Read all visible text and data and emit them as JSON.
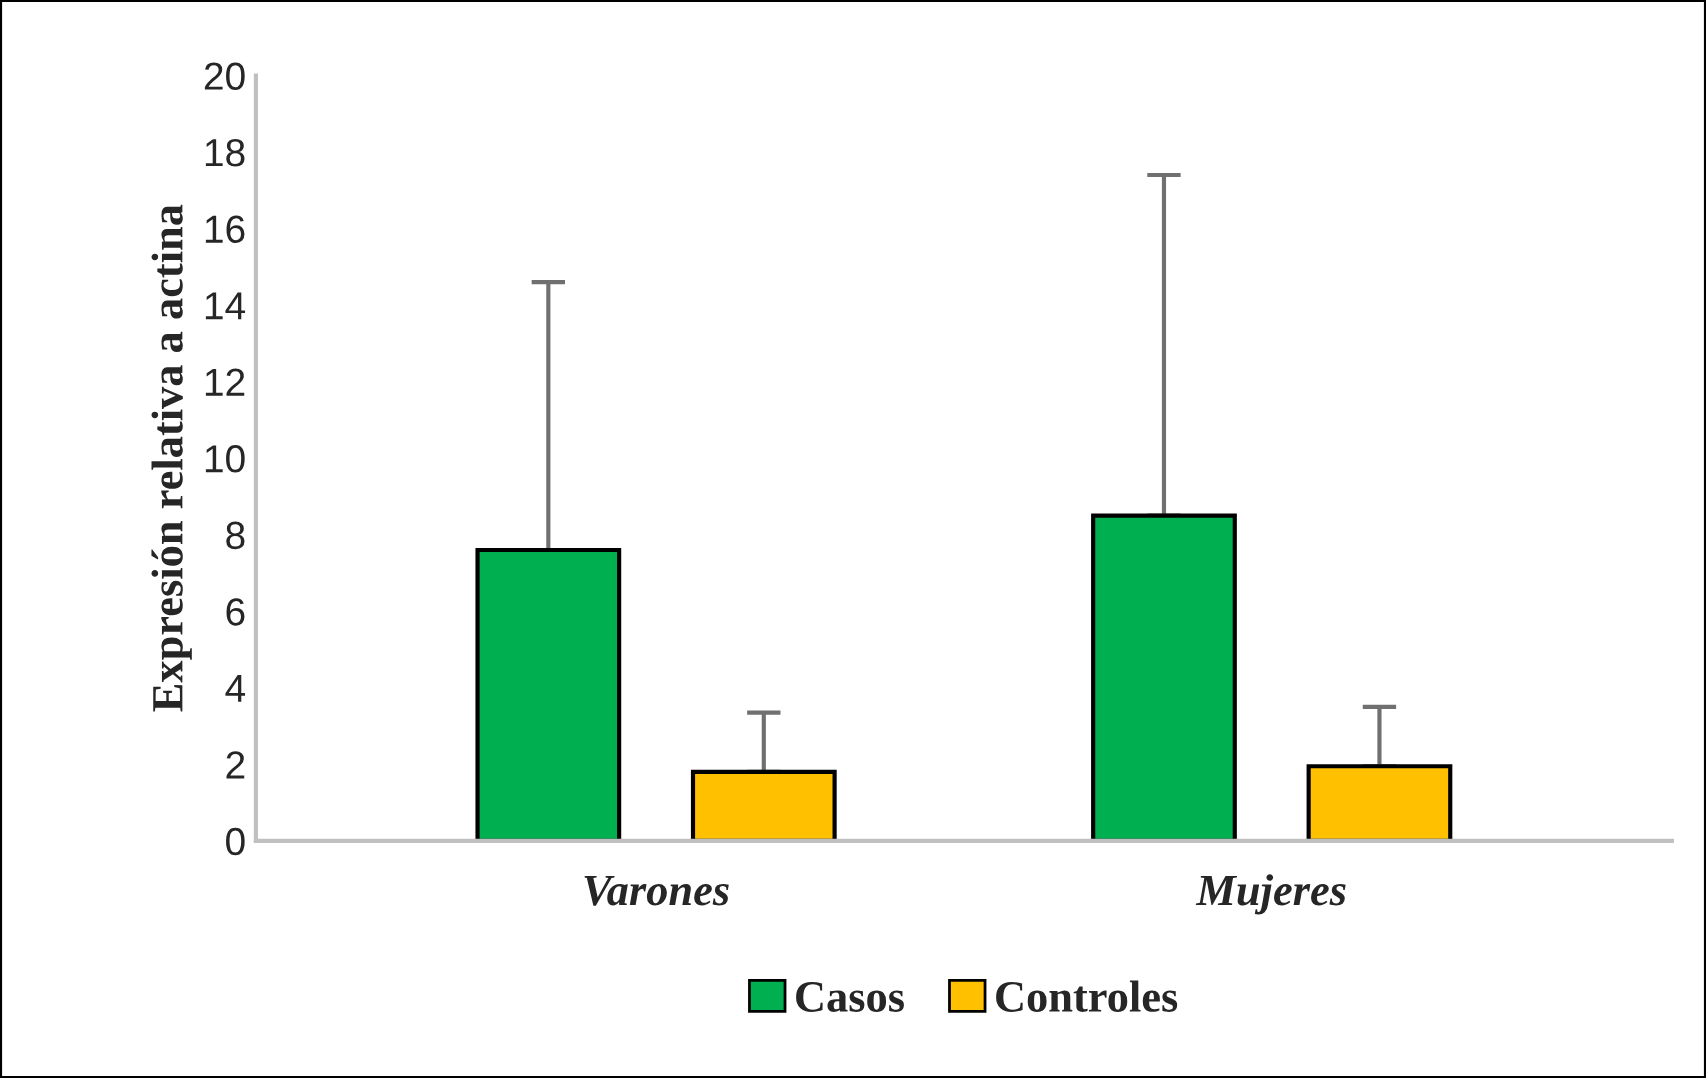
{
  "chart_data": {
    "type": "bar",
    "ylabel": "Expresión relativa a actina",
    "categories": [
      "Varones",
      "Mujeres"
    ],
    "series": [
      {
        "name": "Casos",
        "color": "#00b050",
        "values": [
          7.6,
          8.5
        ],
        "errors": [
          [
            7.6,
            14.6
          ],
          [
            8.5,
            17.4
          ]
        ]
      },
      {
        "name": "Controles",
        "color": "#ffc000",
        "values": [
          1.8,
          1.95
        ],
        "errors": [
          [
            1.8,
            3.35
          ],
          [
            1.95,
            3.5
          ]
        ]
      }
    ],
    "ylim": [
      0,
      20
    ],
    "yticks": [
      0,
      2,
      4,
      6,
      8,
      10,
      12,
      14,
      16,
      18,
      20
    ],
    "grid": false,
    "legend": "bottom"
  }
}
